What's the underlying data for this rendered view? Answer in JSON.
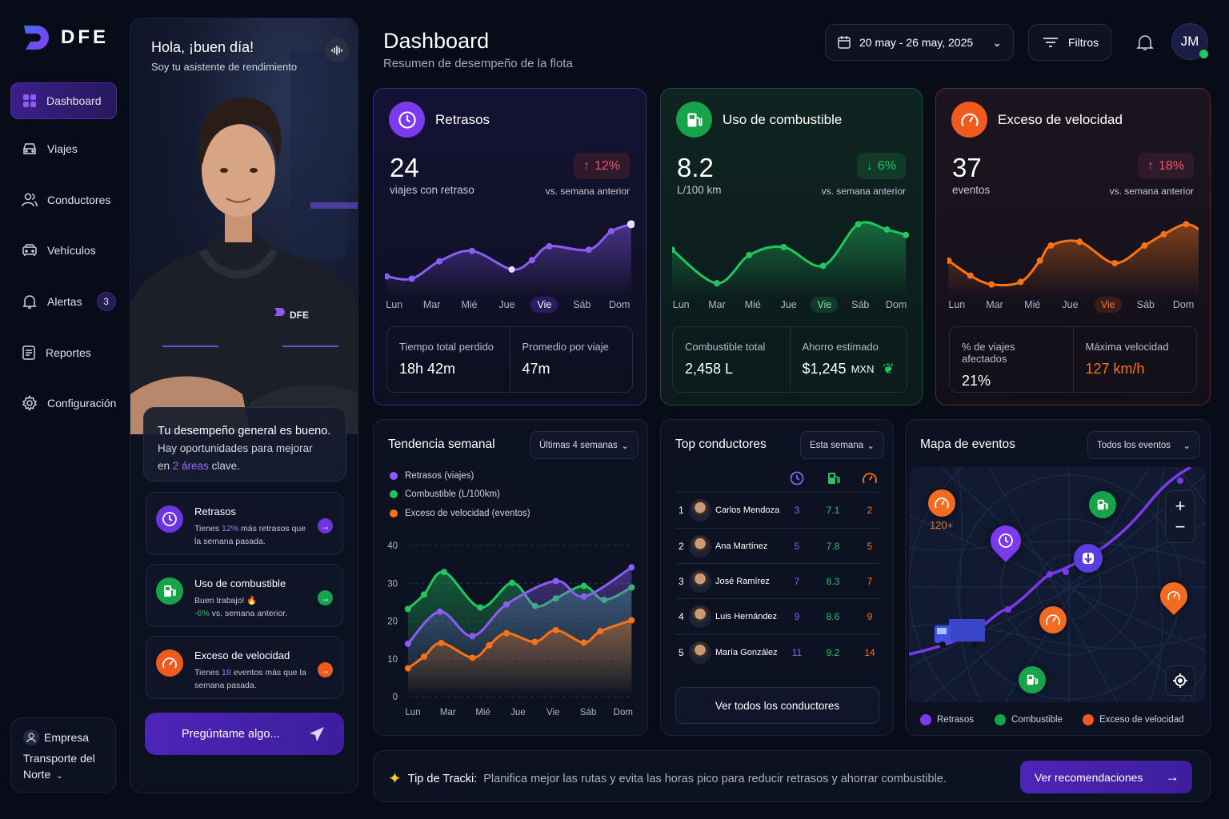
{
  "brand": {
    "name": "DFE"
  },
  "sidebar": {
    "items": [
      {
        "label": "Dashboard",
        "icon": "grid-icon",
        "active": true
      },
      {
        "label": "Viajes",
        "icon": "car-icon"
      },
      {
        "label": "Conductores",
        "icon": "users-icon"
      },
      {
        "label": "Vehículos",
        "icon": "vehicle-icon"
      },
      {
        "label": "Alertas",
        "icon": "bell-icon",
        "badge": "3"
      },
      {
        "label": "Reportes",
        "icon": "document-icon"
      },
      {
        "label": "Configuración",
        "icon": "gear-icon"
      }
    ],
    "company": {
      "label": "Empresa",
      "name": "Transporte del Norte"
    }
  },
  "assistant": {
    "greeting": "Hola, ¡buen día!",
    "subtitle": "Soy tu asistente de rendimiento",
    "jacket_logo": "DFE",
    "summary": {
      "headline": "Tu desempeño general es bueno.",
      "line_a": "Hay oportunidades para mejorar",
      "line_b_pre": "en ",
      "highlight": "2 áreas",
      "line_b_post": " clave."
    },
    "insights": [
      {
        "title": "Retrasos",
        "pre": "Tienes ",
        "highlight": "12%",
        "post": " más retrasos que la semana pasada.",
        "color": "#7c3aed"
      },
      {
        "title": "Uso de combustible",
        "line1": "Buen trabajo! 🔥",
        "highlight": "-6%",
        "post": " vs. semana anterior.",
        "color": "#16a34a"
      },
      {
        "title": "Exceso de velocidad",
        "pre": "Tienes ",
        "highlight": "18",
        "post": " eventos más que la semana pasada.",
        "color": "#f05a1e"
      }
    ],
    "ask_label": "Pregúntame algo..."
  },
  "header": {
    "title": "Dashboard",
    "subtitle": "Resumen de desempeño de la flota",
    "date_range": "20 may - 26 may, 2025",
    "filters_label": "Filtros",
    "user_initials": "JM"
  },
  "days": [
    "Lun",
    "Mar",
    "Mié",
    "Jue",
    "Vie",
    "Sáb",
    "Dom"
  ],
  "selected_day": "Vie",
  "kpis": [
    {
      "title": "Retrasos",
      "value": "24",
      "unit": "viajes con retraso",
      "change": "12%",
      "direction": "up",
      "vs": "vs. semana anterior",
      "color": "#8b5cf6",
      "badge_color": "#f0566a",
      "trend": {
        "x": [
          -0.2,
          0.47,
          1.2,
          2.07,
          3.13,
          3.67,
          4.13,
          5.18,
          5.78,
          6.31
        ],
        "y": [
          21,
          19,
          34,
          43,
          27,
          35,
          47,
          44,
          60,
          66
        ]
      },
      "stats": [
        {
          "label": "Tiempo total perdido",
          "value": "18h 42m"
        },
        {
          "label": "Promedio por viaje",
          "value": "47m"
        }
      ]
    },
    {
      "title": "Uso de combustible",
      "value": "8.2",
      "unit": "L/100 km",
      "change": "6%",
      "direction": "down",
      "vs": "vs. semana anterior",
      "color": "#22c55e",
      "badge_color": "#22c55e",
      "trend": {
        "x": [
          -0.25,
          1.0,
          1.9,
          2.86,
          3.96,
          4.94,
          5.74,
          6.27
        ],
        "y": [
          38,
          13,
          34,
          40,
          26,
          57,
          53,
          49
        ]
      },
      "stats": [
        {
          "label": "Combustible total",
          "value": "2,458 L"
        },
        {
          "label": "Ahorro estimado",
          "value": "$1,245",
          "suffix": "MXN"
        }
      ]
    },
    {
      "title": "Exceso de velocidad",
      "value": "37",
      "unit": "eventos",
      "change": "18%",
      "direction": "up",
      "vs": "vs. semana anterior",
      "color": "#f97316",
      "badge_color": "#f0566a",
      "trend": {
        "x": [
          -0.22,
          0.36,
          0.92,
          1.69,
          2.2,
          2.49,
          3.25,
          4.18,
          4.97,
          5.48,
          6.07,
          6.51
        ],
        "y": [
          32,
          20,
          13,
          15,
          32,
          44,
          47,
          30,
          44,
          53,
          61,
          55
        ]
      },
      "stats": [
        {
          "label": "% de viajes afectados",
          "value": "21%"
        },
        {
          "label": "Máxima velocidad",
          "value": "127 km/h",
          "value_color": "#f97316"
        }
      ]
    }
  ],
  "weekly_trend": {
    "title": "Tendencia semanal",
    "range_option": "Últimas 4 semanas"
  },
  "chart_data": {
    "type": "line",
    "categories": [
      "Lun",
      "Mar",
      "Mié",
      "Jue",
      "Vie",
      "Sáb",
      "Dom"
    ],
    "ylim": [
      0,
      40
    ],
    "yticks": [
      0,
      10,
      20,
      30,
      40
    ],
    "grid": true,
    "legend": "top-left",
    "series": [
      {
        "name": "Retrasos (viajes)",
        "color": "#8b5cf6",
        "x": [
          -0.14,
          0.77,
          1.7,
          2.67,
          4.08,
          4.88,
          6.24
        ],
        "values": [
          14,
          22.5,
          16,
          24.4,
          30.6,
          26.5,
          34.2
        ]
      },
      {
        "name": "Combustible (L/100km)",
        "color": "#22c55e",
        "x": [
          -0.14,
          0.32,
          0.89,
          1.92,
          2.83,
          3.49,
          4.08,
          4.88,
          5.46,
          6.24
        ],
        "values": [
          23.2,
          27,
          33,
          23.6,
          30.1,
          24,
          26,
          29.3,
          25.6,
          28.9
        ]
      },
      {
        "name": "Exceso de velocidad (eventos)",
        "color": "#f97316",
        "x": [
          -0.14,
          0.32,
          0.81,
          1.7,
          2.18,
          2.67,
          3.48,
          4.08,
          4.88,
          5.35,
          6.24
        ],
        "values": [
          7.5,
          10.6,
          14.2,
          10.3,
          13.6,
          16.8,
          14.5,
          17.6,
          14.3,
          17.3,
          20.2
        ]
      }
    ]
  },
  "top_drivers": {
    "title": "Top conductores",
    "period": "Esta semana",
    "columns": [
      "clock-icon",
      "fuel-pump-icon",
      "speedometer-icon"
    ],
    "rows": [
      {
        "rank": "1",
        "name": "Carlos Mendoza",
        "delays": "3",
        "fuel": "7.1",
        "speeding": "2"
      },
      {
        "rank": "2",
        "name": "Ana Martínez",
        "delays": "5",
        "fuel": "7.8",
        "speeding": "5"
      },
      {
        "rank": "3",
        "name": "José Ramírez",
        "delays": "7",
        "fuel": "8.3",
        "speeding": "7"
      },
      {
        "rank": "4",
        "name": "Luis Hernández",
        "delays": "9",
        "fuel": "8.6",
        "speeding": "9"
      },
      {
        "rank": "5",
        "name": "María González",
        "delays": "11",
        "fuel": "9.2",
        "speeding": "14"
      }
    ],
    "view_all": "Ver todos los conductores"
  },
  "event_map": {
    "title": "Mapa de eventos",
    "filter": "Todos los eventos",
    "speed_cluster_label": "120+",
    "legend": [
      "Retrasos",
      "Combustible",
      "Exceso de velocidad"
    ]
  },
  "tip": {
    "label": "Tip de Tracki:",
    "text": "Planifica mejor las rutas y evita las horas pico para reducir retrasos y ahorrar combustible.",
    "button": "Ver recomendaciones"
  }
}
